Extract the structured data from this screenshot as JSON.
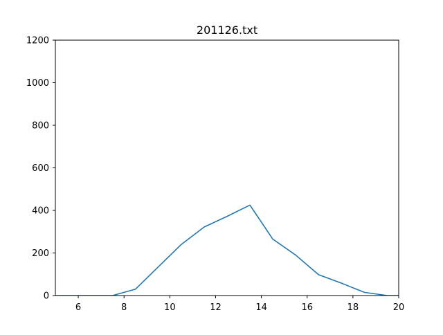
{
  "chart_data": {
    "type": "line",
    "title": "201126.txt",
    "xlabel": "",
    "ylabel": "",
    "xlim": [
      5,
      20
    ],
    "ylim": [
      0,
      1200
    ],
    "xticks": [
      6,
      8,
      10,
      12,
      14,
      16,
      18,
      20
    ],
    "yticks": [
      0,
      200,
      400,
      600,
      800,
      1000,
      1200
    ],
    "grid": false,
    "legend": "none",
    "series": [
      {
        "color": "#1f77b4",
        "x": [
          4.5,
          5.5,
          6.5,
          7.5,
          8.5,
          9.5,
          10.5,
          11.5,
          12.5,
          13.5,
          14.5,
          15.5,
          16.5,
          17.5,
          18.5,
          19.5,
          20.5
        ],
        "y": [
          0,
          0,
          0,
          0,
          30,
          135,
          240,
          322,
          372,
          425,
          265,
          190,
          98,
          58,
          15,
          0,
          0
        ]
      }
    ]
  }
}
